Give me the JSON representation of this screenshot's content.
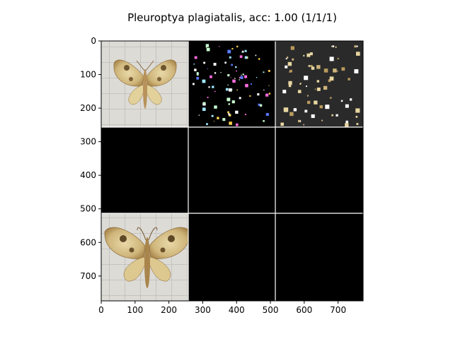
{
  "figure": {
    "title": "Pleuroptya plagiatalis, acc: 1.00 (1/1/1)"
  },
  "axes": {
    "x_ticks": [
      "0",
      "100",
      "200",
      "300",
      "400",
      "500",
      "600",
      "700"
    ],
    "y_ticks": [
      "0",
      "100",
      "200",
      "300",
      "400",
      "500",
      "600",
      "700"
    ],
    "x_tick_values": [
      0,
      100,
      200,
      300,
      400,
      500,
      600,
      700
    ],
    "y_tick_values": [
      0,
      100,
      200,
      300,
      400,
      500,
      600,
      700
    ],
    "xlim": [
      0,
      774
    ],
    "ylim": [
      774,
      0
    ],
    "grid": false
  },
  "mosaic": {
    "rows": 3,
    "cols": 3,
    "tile_size_data_units": 256,
    "separator_color": "#ffffff",
    "cells": [
      {
        "name": "input-image",
        "content": "moth photo on gridded paper",
        "background": "#d8d6d1"
      },
      {
        "name": "saliency-map",
        "content": "sparse colored speckles on black",
        "background": "#000000"
      },
      {
        "name": "masked-image",
        "content": "moth highlights on dark gray",
        "background": "#2b2b2b"
      },
      {
        "name": "empty-cell-row2-col1",
        "content": "black",
        "background": "#000000"
      },
      {
        "name": "empty-cell-row2-col2",
        "content": "black",
        "background": "#000000"
      },
      {
        "name": "empty-cell-row2-col3",
        "content": "black",
        "background": "#000000"
      },
      {
        "name": "reference-image",
        "content": "moth photo on gridded paper",
        "background": "#cfcdc8"
      },
      {
        "name": "empty-cell-row3-col2",
        "content": "black",
        "background": "#000000"
      },
      {
        "name": "empty-cell-row3-col3",
        "content": "black",
        "background": "#000000"
      }
    ]
  }
}
